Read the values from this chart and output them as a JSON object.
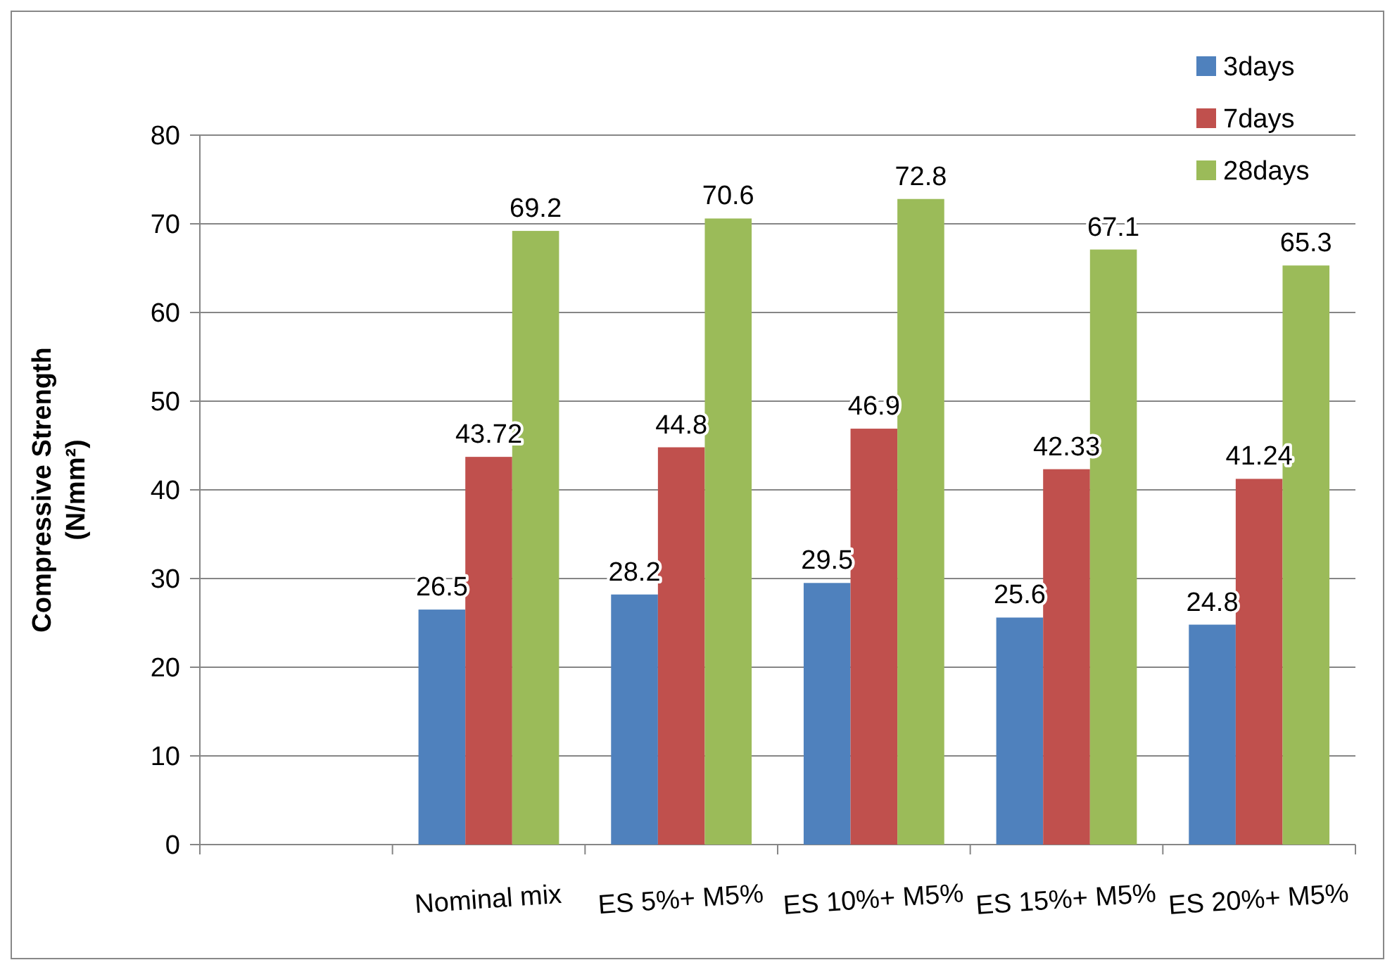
{
  "chart_data": {
    "type": "bar",
    "ylabel": "Compressive Strength (N/mm²)",
    "categories": [
      null,
      "Nominal mix",
      "ES 5%+ M5%",
      "ES 10%+ M5%",
      "ES 15%+ M5%",
      "ES 20%+ M5%"
    ],
    "series": [
      {
        "name": "3days",
        "color": "#4f81bd",
        "values": [
          null,
          26.5,
          28.2,
          29.5,
          25.6,
          24.8
        ]
      },
      {
        "name": "7days",
        "color": "#c0504d",
        "values": [
          null,
          43.72,
          44.8,
          46.9,
          42.33,
          41.24
        ]
      },
      {
        "name": "28days",
        "color": "#9bbb59",
        "values": [
          null,
          69.2,
          70.6,
          72.8,
          67.1,
          65.3
        ]
      }
    ],
    "ylim": [
      0,
      80
    ],
    "yticks": [
      0,
      10,
      20,
      30,
      40,
      50,
      60,
      70,
      80
    ],
    "grid": "y",
    "legend": "top right",
    "data_labels": true
  }
}
